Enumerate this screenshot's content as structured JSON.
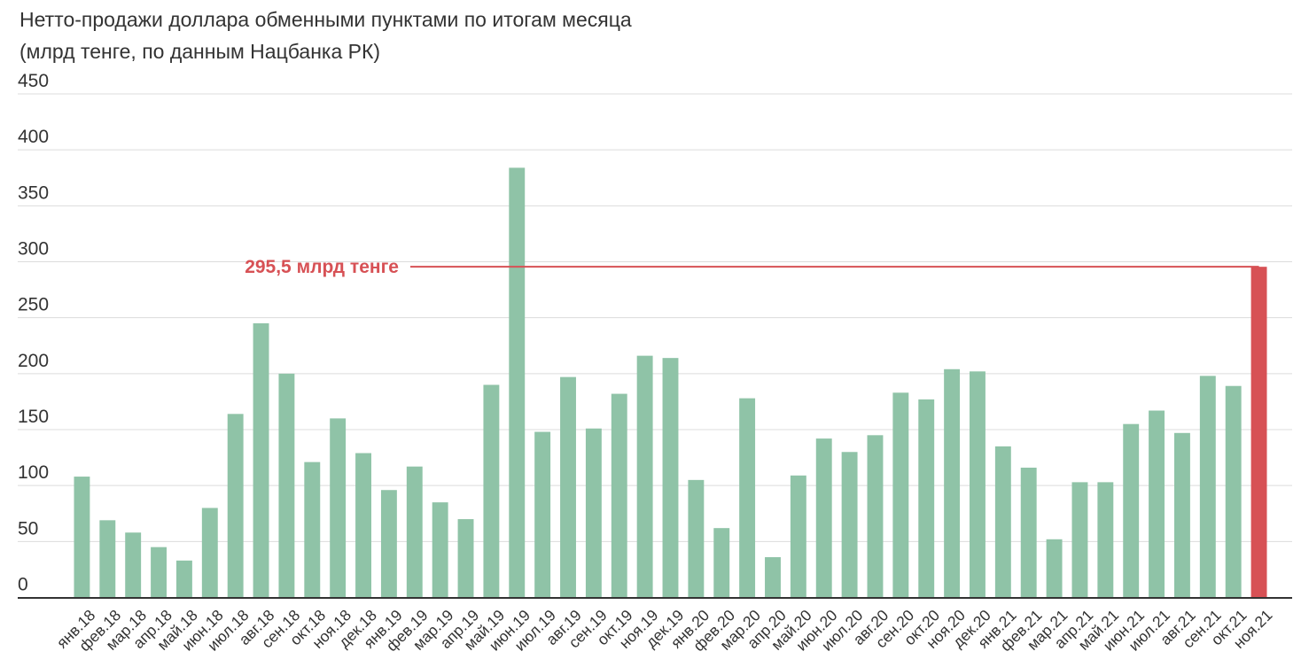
{
  "chart_data": {
    "type": "bar",
    "title": "Нетто-продажи доллара обменными пунктами по итогам месяца",
    "subtitle": "(млрд тенге, по данным Нацбанка РК)",
    "xlabel": "",
    "ylabel": "",
    "ylim": [
      0,
      450
    ],
    "y_ticks": [
      0,
      50,
      100,
      150,
      200,
      250,
      300,
      350,
      400,
      450
    ],
    "grid": true,
    "categories": [
      "янв.18",
      "фев.18",
      "мар.18",
      "апр.18",
      "май.18",
      "июн.18",
      "июл.18",
      "авг.18",
      "сен.18",
      "окт.18",
      "ноя.18",
      "дек.18",
      "янв.19",
      "фев.19",
      "мар.19",
      "апр.19",
      "май.19",
      "июн.19",
      "июл.19",
      "авг.19",
      "сен.19",
      "окт.19",
      "ноя.19",
      "дек.19",
      "янв.20",
      "фев.20",
      "мар.20",
      "апр.20",
      "май.20",
      "июн.20",
      "июл.20",
      "авг.20",
      "сен.20",
      "окт.20",
      "ноя.20",
      "дек.20",
      "янв.21",
      "фев.21",
      "мар.21",
      "апр.21",
      "май.21",
      "июн.21",
      "июл.21",
      "авг.21",
      "сен.21",
      "окт.21",
      "ноя.21"
    ],
    "values": [
      108,
      69,
      58,
      45,
      33,
      80,
      164,
      245,
      200,
      121,
      160,
      129,
      96,
      117,
      85,
      70,
      190,
      384,
      148,
      197,
      151,
      182,
      216,
      214,
      105,
      62,
      178,
      36,
      109,
      142,
      130,
      145,
      183,
      177,
      204,
      202,
      135,
      116,
      52,
      103,
      103,
      155,
      167,
      147,
      198,
      189,
      295.5
    ],
    "highlight_index": 46,
    "colors": {
      "bar": "#8fc3a7",
      "highlight": "#d75155",
      "grid": "#dcdcdc",
      "axis": "#333333",
      "text": "#333333"
    },
    "annotation": {
      "text": "295,5 млрд тенге",
      "value": 295.5,
      "color": "#d75155"
    }
  }
}
